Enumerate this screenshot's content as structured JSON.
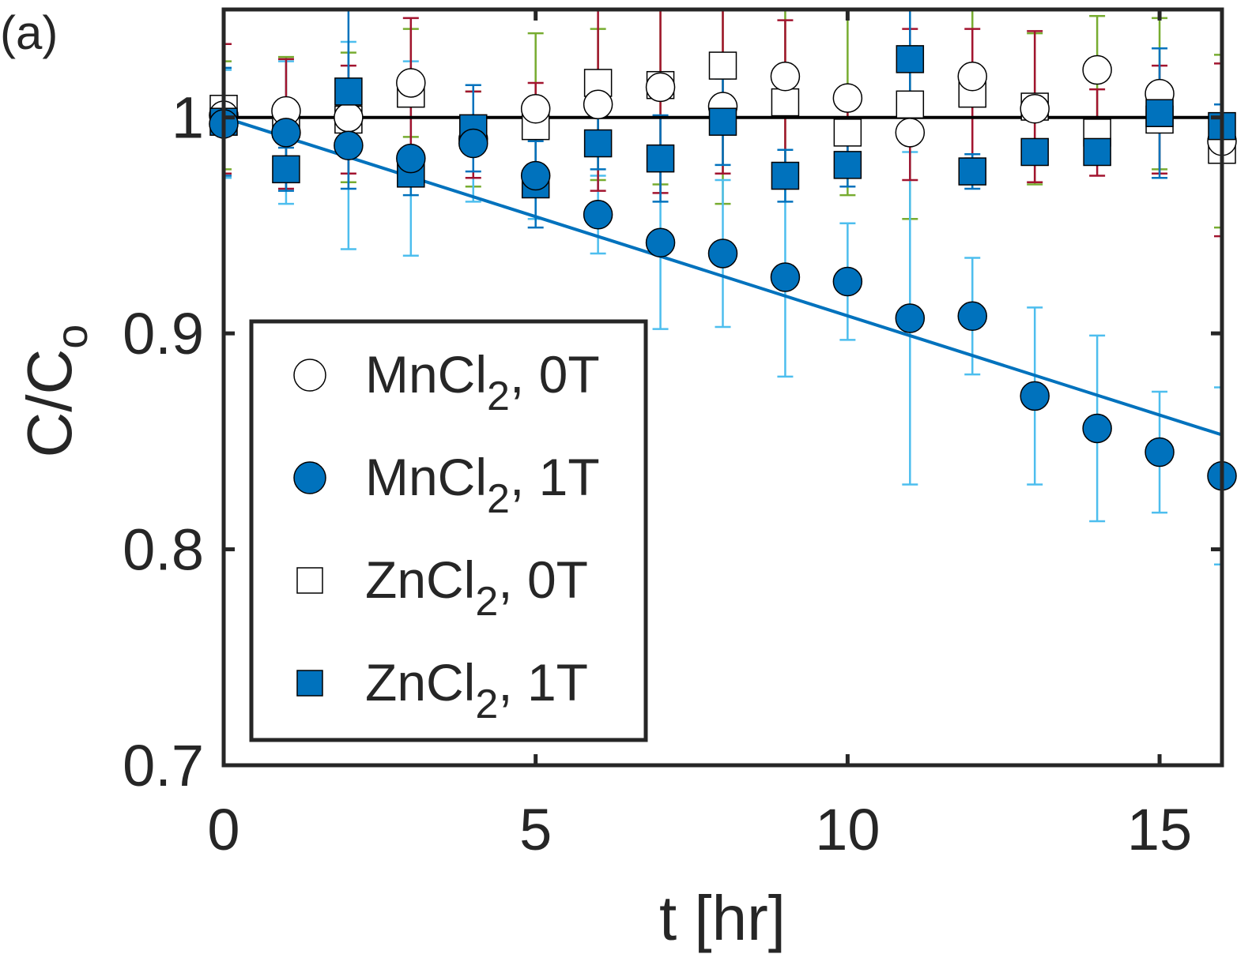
{
  "chart_data": {
    "type": "scatter",
    "panel_label": "(a)",
    "xlabel": "t [hr]",
    "ylabel": "C/C",
    "ylabel_subscript": "o",
    "xlim": [
      0,
      16
    ],
    "ylim": [
      0.7,
      1.05
    ],
    "xticks": [
      0,
      5,
      10,
      15
    ],
    "xtick_labels": [
      "0",
      "5",
      "10",
      "15"
    ],
    "yticks": [
      0.7,
      0.8,
      0.9,
      1.0
    ],
    "ytick_labels": [
      "0.7",
      "0.8",
      "0.9",
      "1"
    ],
    "grid": false,
    "legend_position": "lower-left",
    "x": [
      0,
      1,
      2,
      3,
      4,
      5,
      6,
      7,
      8,
      9,
      10,
      11,
      12,
      13,
      14,
      15,
      16
    ],
    "reference_line": {
      "y": 1.0,
      "color": "#000000"
    },
    "fit_line": {
      "x": [
        0,
        16
      ],
      "y": [
        1.0,
        0.853
      ],
      "color": "#0072BD"
    },
    "series": [
      {
        "name": "MnCl",
        "name_subscript": "2",
        "name_suffix": ", 0T",
        "marker": "circle",
        "filled": false,
        "errorbar_color": "#77AC30",
        "values": [
          1.001,
          1.003,
          1.0,
          1.016,
          0.99,
          1.004,
          1.006,
          1.014,
          1.005,
          1.019,
          1.009,
          0.993,
          1.019,
          1.004,
          1.022,
          1.011,
          0.989
        ],
        "errors": [
          0.025,
          0.025,
          0.03,
          0.025,
          0.022,
          0.035,
          0.035,
          0.045,
          0.045,
          0.045,
          0.045,
          0.04,
          0.04,
          0.035,
          0.025,
          0.035,
          0.04
        ]
      },
      {
        "name": "MnCl",
        "name_subscript": "2",
        "name_suffix": ", 1T",
        "marker": "circle",
        "filled": true,
        "color": "#0072BD",
        "errorbar_color": "#4DBEEE",
        "values": [
          0.997,
          0.993,
          0.987,
          0.981,
          0.988,
          0.973,
          0.955,
          0.942,
          0.937,
          0.926,
          0.924,
          0.907,
          0.908,
          0.871,
          0.856,
          0.845,
          0.834
        ],
        "errors": [
          0.025,
          0.033,
          0.048,
          0.045,
          0.027,
          0.02,
          0.018,
          0.04,
          0.034,
          0.046,
          0.027,
          0.077,
          0.027,
          0.041,
          0.043,
          0.028,
          0.041
        ]
      },
      {
        "name": "ZnCl",
        "name_subscript": "2",
        "name_suffix": ", 0T",
        "marker": "square",
        "filled": false,
        "errorbar_color": "#A2142F",
        "values": [
          1.004,
          0.997,
          0.999,
          1.011,
          0.992,
          0.996,
          1.016,
          1.015,
          1.024,
          1.007,
          0.993,
          1.006,
          1.011,
          1.005,
          0.993,
          0.999,
          0.985
        ],
        "errors": [
          0.03,
          0.03,
          0.025,
          0.035,
          0.02,
          0.02,
          0.05,
          0.05,
          0.05,
          0.038,
          0.015,
          0.035,
          0.03,
          0.035,
          0.02,
          0.025,
          0.04
        ]
      },
      {
        "name": "ZnCl",
        "name_subscript": "2",
        "name_suffix": ", 1T",
        "marker": "square",
        "filled": true,
        "color": "#0072BD",
        "errorbar_color": "#0072BD",
        "values": [
          0.998,
          0.976,
          1.012,
          0.974,
          0.995,
          0.969,
          0.988,
          0.981,
          0.998,
          0.973,
          0.978,
          1.027,
          0.975,
          0.984,
          0.984,
          1.002,
          0.996
        ],
        "errors": [
          0.025,
          0.01,
          0.045,
          0.01,
          0.02,
          0.02,
          0.012,
          0.02,
          0.02,
          0.012,
          0.01,
          0.03,
          0.008,
          0.004,
          0.004,
          0.03,
          0.01
        ]
      }
    ]
  }
}
